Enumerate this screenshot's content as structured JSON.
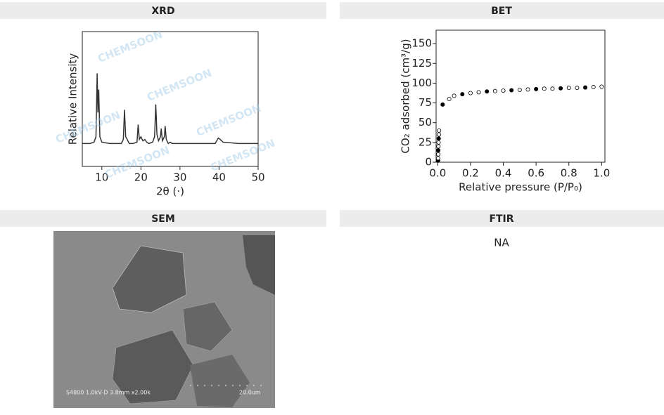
{
  "panels": [
    {
      "title": "XRD",
      "chart": {
        "type": "line",
        "xlabel": "2θ (·)",
        "ylabel": "Relative Intensity",
        "color": "#333333",
        "xlim": [
          5,
          50
        ],
        "xticks": [
          10,
          20,
          30,
          40,
          50
        ],
        "ylim": [
          0,
          100
        ],
        "x": [
          5,
          7,
          8,
          8.5,
          8.8,
          9.0,
          9.2,
          9.5,
          10,
          12,
          15,
          15.5,
          15.8,
          16.1,
          16.5,
          17,
          18,
          19,
          19.3,
          19.6,
          20,
          20.5,
          21,
          21.5,
          22,
          23,
          23.5,
          23.8,
          24.1,
          24.5,
          25,
          25.2,
          25.5,
          26,
          26.2,
          26.5,
          27,
          27.5,
          28,
          30,
          35,
          39,
          39.8,
          40.3,
          41,
          45,
          50
        ],
        "values": [
          17,
          17,
          18,
          22,
          69,
          40,
          57,
          22,
          18,
          17,
          17,
          20,
          42,
          22,
          20,
          17,
          17,
          18,
          31,
          20,
          22,
          19,
          20,
          18,
          17,
          18,
          22,
          46,
          24,
          19,
          22,
          28,
          19,
          22,
          30,
          20,
          17,
          18,
          17,
          17,
          17,
          17,
          21,
          20,
          18,
          17,
          17
        ]
      }
    },
    {
      "title": "BET",
      "chart": {
        "type": "scatter",
        "xlabel": "Relative pressure (P/P₀)",
        "ylabel": "CO₂ adsorbed (cm³/g)",
        "color": "#000000",
        "xlim": [
          -0.01,
          1.02
        ],
        "xticks": [
          {
            "value": 0,
            "label": "0.0"
          },
          0.2,
          0.4,
          0.6,
          0.8,
          {
            "value": 1,
            "label": "1.0"
          }
        ],
        "ylim": [
          0,
          167
        ],
        "yticks": [
          0,
          25,
          50,
          75,
          100,
          125,
          150
        ],
        "x": [
          0.002,
          0.002,
          0.003,
          0.003,
          0.004,
          0.005,
          0.006,
          0.007,
          0.008,
          0.03,
          0.07,
          0.1,
          0.15,
          0.2,
          0.25,
          0.3,
          0.35,
          0.4,
          0.45,
          0.5,
          0.55,
          0.6,
          0.65,
          0.7,
          0.75,
          0.8,
          0.85,
          0.9,
          0.95,
          1.0
        ],
        "values": [
          2,
          5,
          10,
          15,
          20,
          25,
          30,
          35,
          40,
          73,
          80,
          84,
          86,
          87.5,
          88.5,
          89.5,
          90,
          90.5,
          91,
          91.5,
          92,
          92.5,
          93,
          93,
          93.5,
          94,
          94,
          94.5,
          95,
          95.5
        ]
      }
    },
    {
      "title": "SEM",
      "image_caption": "S4800 1.0kV-D 3.8mm x2.00k",
      "scale_label": "20.0um"
    },
    {
      "title": "FTIR",
      "text": "NA"
    }
  ],
  "watermark": "CHEMSOON"
}
